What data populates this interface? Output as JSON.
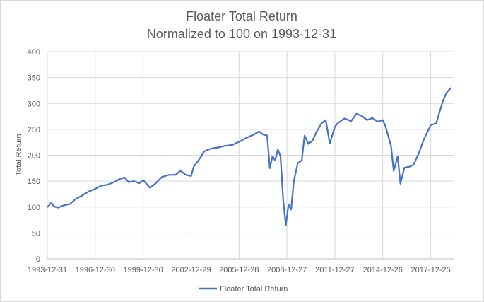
{
  "chart_data": {
    "type": "line",
    "title": "Floater Total Return",
    "subtitle": "Normalized to 100 on 1993-12-31",
    "xlabel": "",
    "ylabel": "Total Return",
    "ylim": [
      0,
      400
    ],
    "yticks": [
      0,
      50,
      100,
      150,
      200,
      250,
      300,
      350,
      400
    ],
    "xticks": [
      "1993-12-31",
      "1996-12-30",
      "1999-12-30",
      "2002-12-29",
      "2005-12-28",
      "2008-12-27",
      "2011-12-27",
      "2014-12-26",
      "2017-12-25"
    ],
    "grid": true,
    "legend": "bottom",
    "line_color": "#4472c4",
    "series": [
      {
        "name": "Floater Total Return",
        "points": [
          [
            "1993-12-31",
            100
          ],
          [
            "1994-04-01",
            108
          ],
          [
            "1994-06-01",
            101
          ],
          [
            "1994-09-01",
            99
          ],
          [
            "1995-01-01",
            103
          ],
          [
            "1995-06-01",
            106
          ],
          [
            "1995-10-01",
            115
          ],
          [
            "1996-03-01",
            122
          ],
          [
            "1996-08-01",
            130
          ],
          [
            "1996-12-30",
            135
          ],
          [
            "1997-05-01",
            141
          ],
          [
            "1997-10-01",
            143
          ],
          [
            "1998-03-01",
            148
          ],
          [
            "1998-08-01",
            155
          ],
          [
            "1998-11-01",
            157
          ],
          [
            "1999-02-01",
            148
          ],
          [
            "1999-06-01",
            150
          ],
          [
            "1999-10-01",
            146
          ],
          [
            "2000-01-01",
            152
          ],
          [
            "2000-06-01",
            137
          ],
          [
            "2000-10-01",
            145
          ],
          [
            "2001-03-01",
            158
          ],
          [
            "2001-08-01",
            162
          ],
          [
            "2002-01-01",
            162
          ],
          [
            "2002-05-01",
            170
          ],
          [
            "2002-09-01",
            162
          ],
          [
            "2002-12-29",
            160
          ],
          [
            "2003-03-01",
            178
          ],
          [
            "2003-07-01",
            192
          ],
          [
            "2003-11-01",
            208
          ],
          [
            "2004-04-01",
            213
          ],
          [
            "2004-09-01",
            215
          ],
          [
            "2005-02-01",
            218
          ],
          [
            "2005-08-01",
            220
          ],
          [
            "2005-12-28",
            226
          ],
          [
            "2006-06-01",
            233
          ],
          [
            "2006-12-01",
            240
          ],
          [
            "2007-04-01",
            246
          ],
          [
            "2007-07-01",
            240
          ],
          [
            "2007-10-01",
            238
          ],
          [
            "2007-12-01",
            175
          ],
          [
            "2008-02-01",
            198
          ],
          [
            "2008-04-01",
            190
          ],
          [
            "2008-06-01",
            211
          ],
          [
            "2008-08-01",
            198
          ],
          [
            "2008-10-01",
            115
          ],
          [
            "2008-12-01",
            65
          ],
          [
            "2009-02-01",
            105
          ],
          [
            "2009-04-01",
            95
          ],
          [
            "2009-06-01",
            150
          ],
          [
            "2009-09-01",
            185
          ],
          [
            "2009-12-01",
            190
          ],
          [
            "2010-02-01",
            238
          ],
          [
            "2010-05-01",
            222
          ],
          [
            "2010-08-01",
            228
          ],
          [
            "2010-11-01",
            245
          ],
          [
            "2011-03-01",
            262
          ],
          [
            "2011-06-01",
            268
          ],
          [
            "2011-09-01",
            223
          ],
          [
            "2011-12-27",
            255
          ],
          [
            "2012-03-01",
            262
          ],
          [
            "2012-08-01",
            271
          ],
          [
            "2013-01-01",
            266
          ],
          [
            "2013-05-01",
            280
          ],
          [
            "2013-09-01",
            276
          ],
          [
            "2014-01-01",
            268
          ],
          [
            "2014-05-01",
            272
          ],
          [
            "2014-09-01",
            265
          ],
          [
            "2014-12-26",
            268
          ],
          [
            "2015-03-01",
            255
          ],
          [
            "2015-07-01",
            218
          ],
          [
            "2015-09-01",
            170
          ],
          [
            "2015-12-01",
            198
          ],
          [
            "2016-02-01",
            145
          ],
          [
            "2016-05-01",
            176
          ],
          [
            "2016-09-01",
            178
          ],
          [
            "2016-12-01",
            182
          ],
          [
            "2017-04-01",
            205
          ],
          [
            "2017-08-01",
            233
          ],
          [
            "2017-12-25",
            258
          ],
          [
            "2018-05-01",
            262
          ],
          [
            "2018-10-01",
            305
          ],
          [
            "2019-01-01",
            322
          ],
          [
            "2019-04-01",
            330
          ]
        ]
      }
    ]
  }
}
